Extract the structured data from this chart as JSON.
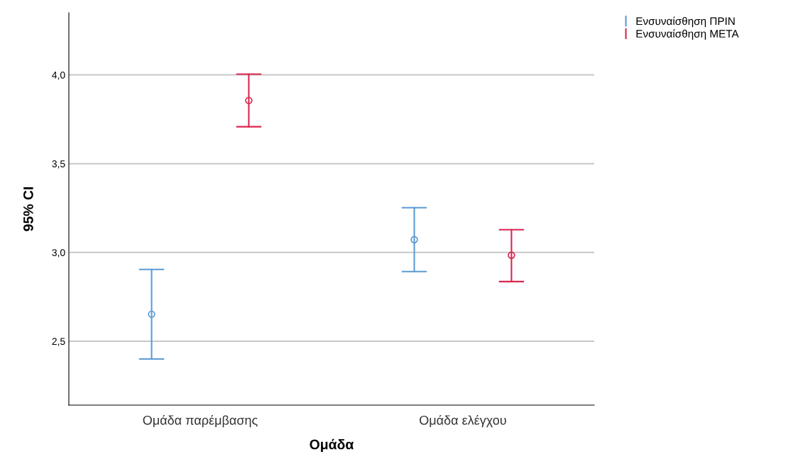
{
  "chart_data": {
    "type": "scatter",
    "xlabel": "Ομάδα",
    "ylabel": "95% CI",
    "categories": [
      "Ομάδα παρέμβασης",
      "Ομάδα ελέγχου"
    ],
    "series": [
      {
        "name": "Ενσυναίσθηση ΠΡΙΝ",
        "color": "#5b9bd5",
        "values": [
          2.652,
          3.072
        ],
        "errors": [
          [
            2.4,
            2.904
          ],
          [
            2.892,
            3.252
          ]
        ]
      },
      {
        "name": "Ενσυναίσθηση ΜΕΤΑ",
        "color": "#d9264f",
        "values": [
          3.856,
          2.984
        ],
        "errors": [
          [
            3.708,
            4.004
          ],
          [
            2.836,
            3.128
          ]
        ]
      }
    ],
    "ylim": [
      2.14,
      4.35
    ],
    "yticks": [
      {
        "value": 2.5,
        "label": "2,5"
      },
      {
        "value": 3.0,
        "label": "3,0"
      },
      {
        "value": 3.5,
        "label": "3,5"
      },
      {
        "value": 4.0,
        "label": "4,0"
      }
    ],
    "grid": "y",
    "legend": "top right",
    "marker": "circle"
  }
}
